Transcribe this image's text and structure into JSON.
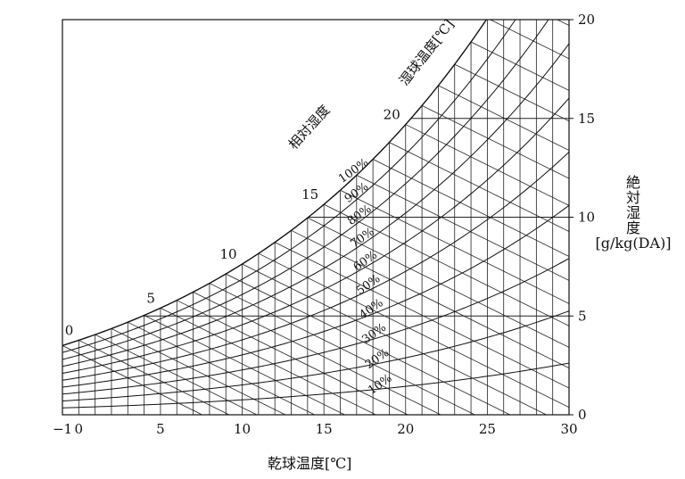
{
  "chart_data": {
    "type": "line",
    "title": "",
    "xlabel": "乾球温度[℃]",
    "ylabel_lines": [
      "絶",
      "対",
      "湿",
      "度"
    ],
    "ylabel_unit": "[g/kg(DA)]",
    "xlim": [
      -1,
      30
    ],
    "ylim": [
      0,
      20
    ],
    "x_ticks": [
      -1,
      0,
      5,
      10,
      15,
      20,
      25,
      30
    ],
    "x_tick_labels": [
      "−1",
      "0",
      "5",
      "10",
      "15",
      "20",
      "25",
      "30"
    ],
    "y_ticks": [
      0,
      5,
      10,
      15,
      20
    ],
    "y_tick_labels": [
      "0",
      "5",
      "10",
      "15",
      "20"
    ],
    "grid": false,
    "relative_humidity_title": "相対湿度",
    "wet_bulb_title": "湿球温度[℃]",
    "relative_humidity_curves": [
      {
        "rh": 100,
        "label": "100%"
      },
      {
        "rh": 90,
        "label": "90%"
      },
      {
        "rh": 80,
        "label": "80%"
      },
      {
        "rh": 70,
        "label": "70%"
      },
      {
        "rh": 60,
        "label": "60%"
      },
      {
        "rh": 50,
        "label": "50%"
      },
      {
        "rh": 40,
        "label": "40%"
      },
      {
        "rh": 30,
        "label": "30%"
      },
      {
        "rh": 20,
        "label": "20%"
      },
      {
        "rh": 10,
        "label": "10%"
      }
    ],
    "saturation_labels": [
      {
        "t": 0,
        "label": "0"
      },
      {
        "t": 5,
        "label": "5"
      },
      {
        "t": 10,
        "label": "10"
      },
      {
        "t": 15,
        "label": "15"
      },
      {
        "t": 20,
        "label": "20"
      }
    ],
    "wet_bulb_step": 1,
    "wet_bulb_range": [
      -1,
      30
    ],
    "absolute_humidity_lines": [
      5,
      10,
      15
    ],
    "rh_label_at_temperature": 17
  }
}
